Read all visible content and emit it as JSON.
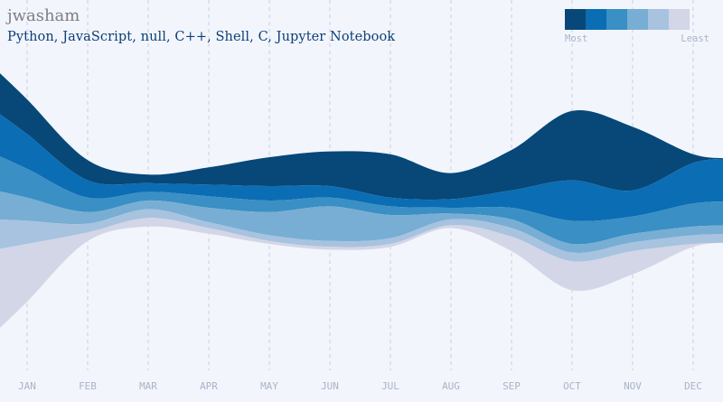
{
  "header": {
    "username": "jwasham",
    "languages": "Python, JavaScript, null, C++, Shell, C, Jupyter Notebook"
  },
  "legend": {
    "most_label": "Most",
    "least_label": "Least",
    "colors": [
      "#074878",
      "#0b6db3",
      "#3a8fc4",
      "#78aed4",
      "#a8c3df",
      "#d2d6e6"
    ]
  },
  "chart_data": {
    "type": "area",
    "title": "",
    "categories": [
      "JAN",
      "FEB",
      "MAR",
      "APR",
      "MAY",
      "JUN",
      "JUL",
      "AUG",
      "SEP",
      "OCT",
      "NOV",
      "DEC"
    ],
    "series": [
      {
        "values": [
          12,
          7,
          3,
          6,
          10,
          12,
          15,
          9,
          14,
          24,
          22,
          3
        ],
        "color": "#074878"
      },
      {
        "values": [
          12,
          6,
          3,
          4,
          5,
          4,
          3,
          3,
          6,
          14,
          9,
          14
        ],
        "color": "#0b6db3"
      },
      {
        "values": [
          10,
          5,
          3,
          4,
          4,
          3,
          3,
          2,
          4,
          8,
          6,
          8
        ],
        "color": "#3a8fc4"
      },
      {
        "values": [
          8,
          4,
          3,
          5,
          8,
          12,
          8,
          2,
          3,
          3,
          3,
          3
        ],
        "color": "#78aed4"
      },
      {
        "values": [
          8,
          3,
          3,
          2,
          2,
          2,
          2,
          2,
          3,
          3,
          3,
          3
        ],
        "color": "#a8c3df"
      },
      {
        "values": [
          20,
          3,
          3,
          2,
          1,
          1,
          1,
          1,
          5,
          10,
          8,
          1
        ],
        "color": "#d2d6e6"
      }
    ],
    "grid": true
  }
}
